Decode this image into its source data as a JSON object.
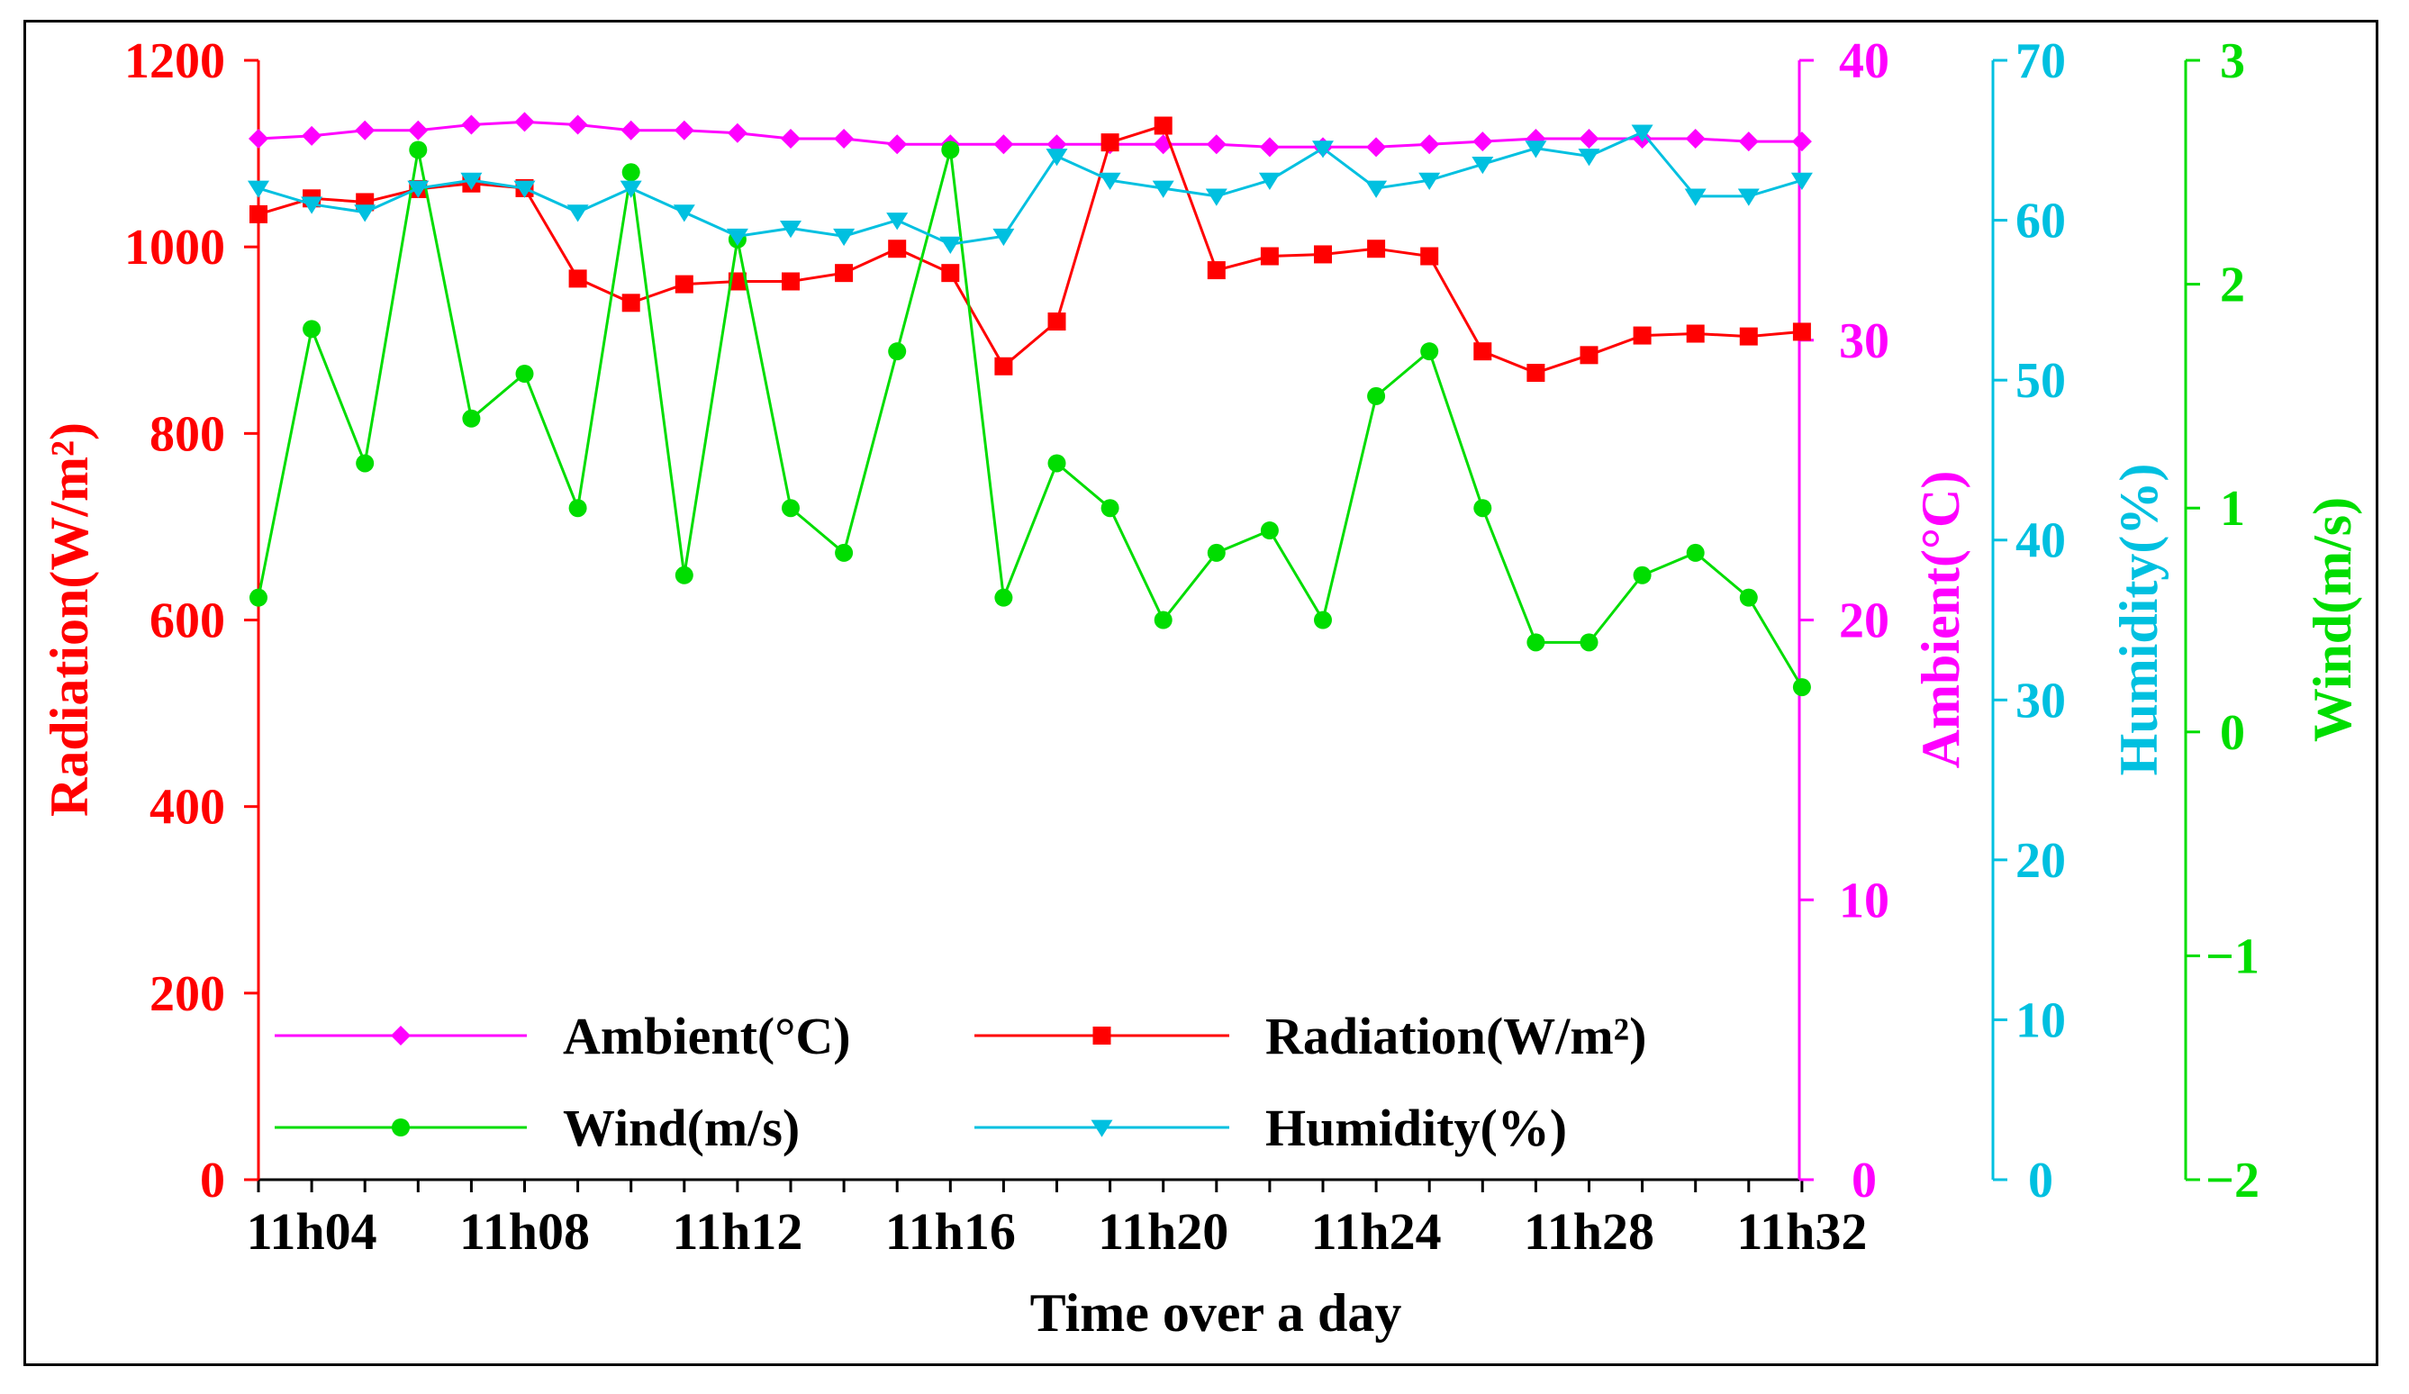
{
  "chart_data": {
    "type": "line",
    "title": "",
    "xlabel": "Time over a day",
    "categories": [
      "11h03",
      "11h04",
      "11h05",
      "11h06",
      "11h07",
      "11h08",
      "11h09",
      "11h10",
      "11h11",
      "11h12",
      "11h13",
      "11h14",
      "11h15",
      "11h16",
      "11h17",
      "11h18",
      "11h19",
      "11h20",
      "11h21",
      "11h22",
      "11h23",
      "11h24",
      "11h25",
      "11h26",
      "11h27",
      "11h28",
      "11h29",
      "11h30",
      "11h31",
      "11h32"
    ],
    "x_tick_labels": [
      "11h04",
      "11h08",
      "11h12",
      "11h16",
      "11h20",
      "11h24",
      "11h28",
      "11h32"
    ],
    "grid": false,
    "legend_position": "bottom-left",
    "axes": [
      {
        "id": "radiation",
        "label": "Radiation(W/m²)",
        "side": "left",
        "ylim": [
          0,
          1200
        ],
        "ticks": [
          0,
          200,
          400,
          600,
          800,
          1000,
          1200
        ],
        "color": "#ff0000"
      },
      {
        "id": "ambient",
        "label": "Ambient(°C)",
        "side": "right",
        "ylim": [
          0,
          40
        ],
        "ticks": [
          0,
          10,
          20,
          30,
          40
        ],
        "color": "#ff00ff"
      },
      {
        "id": "humidity",
        "label": "Humidity(%)",
        "side": "right",
        "ylim": [
          0,
          70
        ],
        "ticks": [
          0,
          10,
          20,
          30,
          40,
          50,
          60,
          70
        ],
        "color": "#00c0e0"
      },
      {
        "id": "wind",
        "label": "Wind(m/s)",
        "side": "right",
        "ylim": [
          -2,
          3
        ],
        "ticks": [
          -2,
          -1,
          0,
          1,
          2,
          3
        ],
        "tick_labels": [
          "−2",
          "−1",
          "0",
          "1",
          "2",
          "3"
        ],
        "color": "#00dd00"
      }
    ],
    "series": [
      {
        "name": "Ambient(°C)",
        "axis": "ambient",
        "color": "#ff00ff",
        "marker": "diamond",
        "values": [
          37.2,
          37.3,
          37.5,
          37.5,
          37.7,
          37.8,
          37.7,
          37.5,
          37.5,
          37.4,
          37.2,
          37.2,
          37.0,
          37.0,
          37.0,
          37.0,
          37.0,
          37.0,
          37.0,
          36.9,
          36.9,
          36.9,
          37.0,
          37.1,
          37.2,
          37.2,
          37.2,
          37.2,
          37.1,
          37.1
        ]
      },
      {
        "name": "Radiation(W/m²)",
        "axis": "radiation",
        "color": "#ff0000",
        "marker": "square",
        "values": [
          1035,
          1052,
          1048,
          1062,
          1068,
          1063,
          966,
          940,
          960,
          963,
          963,
          972,
          998,
          972,
          872,
          920,
          1112,
          1130,
          975,
          990,
          992,
          998,
          990,
          888,
          865,
          884,
          905,
          907,
          904,
          909
        ]
      },
      {
        "name": "Wind(m/s)",
        "axis": "wind",
        "color": "#00dd00",
        "marker": "circle",
        "values": [
          0.6,
          1.8,
          1.2,
          2.6,
          1.4,
          1.6,
          1.0,
          2.5,
          0.7,
          2.2,
          1.0,
          0.8,
          1.7,
          2.6,
          0.6,
          1.2,
          1.0,
          0.5,
          0.8,
          0.9,
          0.5,
          1.5,
          1.7,
          1.0,
          0.4,
          0.4,
          0.7,
          0.8,
          0.6,
          0.2
        ]
      },
      {
        "name": "Humidity(%)",
        "axis": "humidity",
        "color": "#00c0e0",
        "marker": "triangle-down",
        "values": [
          62,
          61,
          60.5,
          62,
          62.5,
          62,
          60.5,
          62,
          60.5,
          59,
          59.5,
          59,
          60,
          58.5,
          59,
          64,
          62.5,
          62,
          61.5,
          62.5,
          64.5,
          62,
          62.5,
          63.5,
          64.5,
          64,
          65.5,
          61.5,
          61.5,
          62.5
        ]
      }
    ]
  }
}
